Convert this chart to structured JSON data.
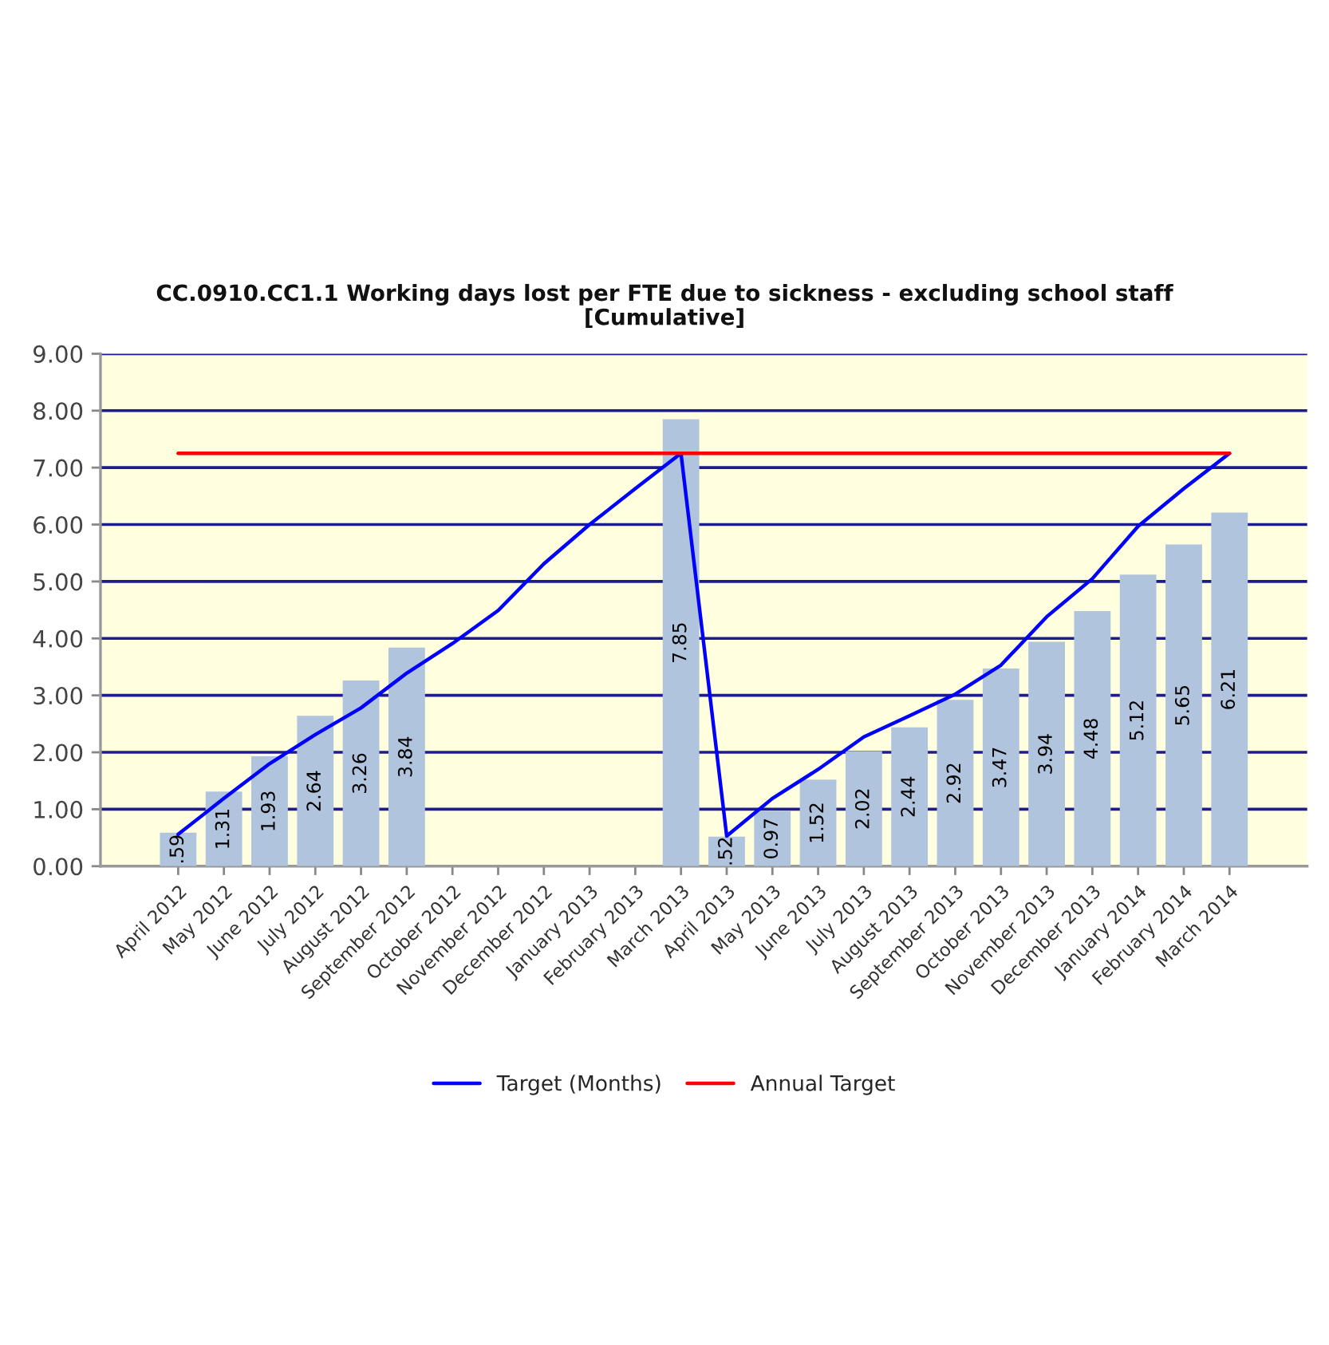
{
  "chart_data": {
    "type": "bar",
    "title": "CC.0910.CC1.1 Working days lost per FTE due to sickness - excluding school staff\n[Cumulative]",
    "categories": [
      "April 2012",
      "May 2012",
      "June 2012",
      "July 2012",
      "August 2012",
      "September 2012",
      "October 2012",
      "November 2012",
      "December 2012",
      "January 2013",
      "February 2013",
      "March 2013",
      "April 2013",
      "May 2013",
      "June 2013",
      "July 2013",
      "August 2013",
      "September 2013",
      "October 2013",
      "November 2013",
      "December 2013",
      "January 2014",
      "February 2014",
      "March 2014"
    ],
    "series": [
      {
        "color": "#b0c4de",
        "values": [
          0.59,
          1.31,
          1.93,
          2.64,
          3.26,
          3.84,
          null,
          null,
          null,
          null,
          null,
          7.85,
          0.52,
          0.97,
          1.52,
          2.02,
          2.44,
          2.92,
          3.47,
          3.94,
          4.48,
          5.12,
          5.65,
          6.21
        ],
        "value_labels": [
          ".59",
          "1.31",
          "1.93",
          "2.64",
          "3.26",
          "3.84",
          null,
          null,
          null,
          null,
          null,
          "7.85",
          ".52",
          "0.97",
          "1.52",
          "2.02",
          "2.44",
          "2.92",
          "3.47",
          "3.94",
          "4.48",
          "5.12",
          "5.65",
          "6.21"
        ]
      },
      {
        "type": "line",
        "name": "Target (Months)",
        "color": "#0000ff",
        "values": [
          0.56,
          1.19,
          1.8,
          2.31,
          2.78,
          3.39,
          3.91,
          4.49,
          5.31,
          6.0,
          6.63,
          7.25,
          0.53,
          1.19,
          1.7,
          2.27,
          2.64,
          3.02,
          3.53,
          4.38,
          5.05,
          5.97,
          6.63,
          7.25
        ]
      },
      {
        "type": "line",
        "name": "Annual Target",
        "color": "#ff0000",
        "values": [
          7.25,
          7.25,
          7.25,
          7.25,
          7.25,
          7.25,
          7.25,
          7.25,
          7.25,
          7.25,
          7.25,
          7.25,
          7.25,
          7.25,
          7.25,
          7.25,
          7.25,
          7.25,
          7.25,
          7.25,
          7.25,
          7.25,
          7.25,
          7.25
        ]
      }
    ],
    "ylim": [
      0,
      9
    ],
    "yticks": [
      {
        "value": 0,
        "label": "0.00"
      },
      {
        "value": 1,
        "label": "1.00"
      },
      {
        "value": 2,
        "label": "2.00"
      },
      {
        "value": 3,
        "label": "3.00"
      },
      {
        "value": 4,
        "label": "4.00"
      },
      {
        "value": 5,
        "label": "5.00"
      },
      {
        "value": 6,
        "label": "6.00"
      },
      {
        "value": 7,
        "label": "7.00"
      },
      {
        "value": 8,
        "label": "8.00"
      },
      {
        "value": 9,
        "label": "9.00"
      }
    ],
    "grid": "y",
    "legend": "bottom"
  }
}
